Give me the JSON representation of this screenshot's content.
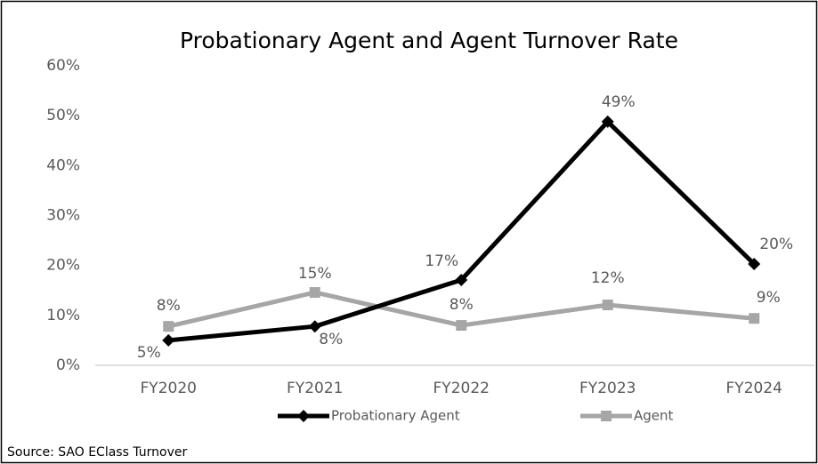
{
  "chart_data": {
    "type": "line",
    "title": "Probationary Agent and Agent Turnover Rate",
    "source": "Source: SAO EClass Turnover",
    "categories": [
      "FY2020",
      "FY2021",
      "FY2022",
      "FY2023",
      "FY2024"
    ],
    "series": [
      {
        "name": "Probationary Agent",
        "color": "#000000",
        "marker": "diamond",
        "values": [
          5,
          7.8,
          17.1,
          48.8,
          20.3
        ],
        "value_labels": [
          "5%",
          "8%",
          "17%",
          "49%",
          "20%"
        ]
      },
      {
        "name": "Agent",
        "color": "#a6a6a6",
        "marker": "square",
        "values": [
          7.8,
          14.6,
          8,
          12.1,
          9.4
        ],
        "value_labels": [
          "8%",
          "15%",
          "8%",
          "12%",
          "9%"
        ]
      }
    ],
    "ylim": [
      0,
      60
    ],
    "yticks": [
      {
        "value": 0,
        "label": "0%"
      },
      {
        "value": 10,
        "label": "10%"
      },
      {
        "value": 20,
        "label": "20%"
      },
      {
        "value": 30,
        "label": "30%"
      },
      {
        "value": 40,
        "label": "40%"
      },
      {
        "value": 50,
        "label": "50%"
      },
      {
        "value": 60,
        "label": "60%"
      }
    ],
    "grid": false,
    "legend": "bottom"
  }
}
